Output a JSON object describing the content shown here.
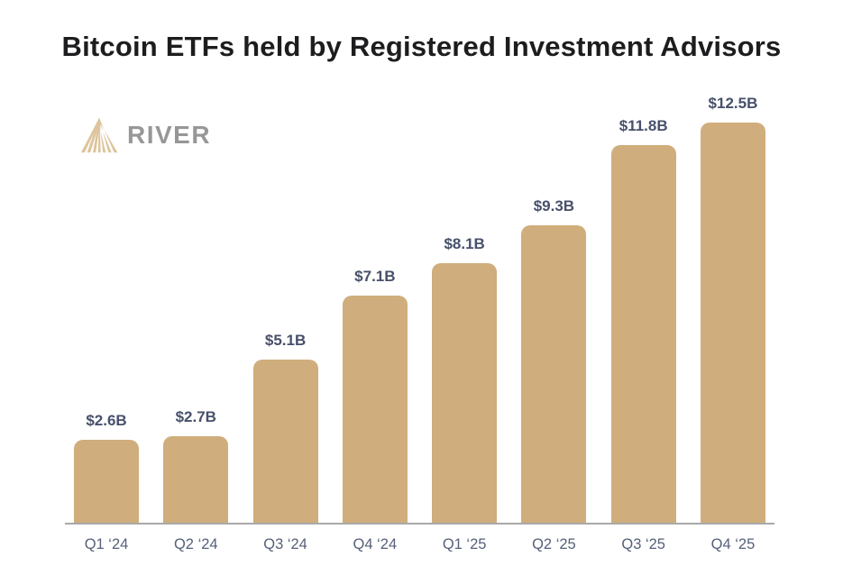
{
  "header": {
    "title": "Bitcoin ETFs held by Registered Investment Advisors"
  },
  "logo": {
    "brand": "RIVER"
  },
  "colors": {
    "background": "#ffffff",
    "bar": "#d0ad7c",
    "logo_icon": "#ddc49c",
    "logo_text": "#979797",
    "title_text": "#1d1d1f",
    "value_label": "#47506b",
    "axis_label": "#56607a",
    "axis_line": "#a9a9a9"
  },
  "chart_data": {
    "type": "bar",
    "title": "Bitcoin ETFs held by Registered Investment Advisors",
    "categories": [
      "Q1 ‘24",
      "Q2 ‘24",
      "Q3 ‘24",
      "Q4 ‘24",
      "Q1 ‘25",
      "Q2 ‘25",
      "Q3 ‘25",
      "Q4 ‘25"
    ],
    "values": [
      2.6,
      2.7,
      5.1,
      7.1,
      8.1,
      9.3,
      11.8,
      12.5
    ],
    "value_labels": [
      "$2.6B",
      "$2.7B",
      "$5.1B",
      "$7.1B",
      "$8.1B",
      "$9.3B",
      "$11.8B",
      "$12.5B"
    ],
    "xlabel": "",
    "ylabel": "",
    "ylim": [
      0,
      12.5
    ],
    "grid": false,
    "legend": "none",
    "bar_color": "#d0ad7c"
  }
}
